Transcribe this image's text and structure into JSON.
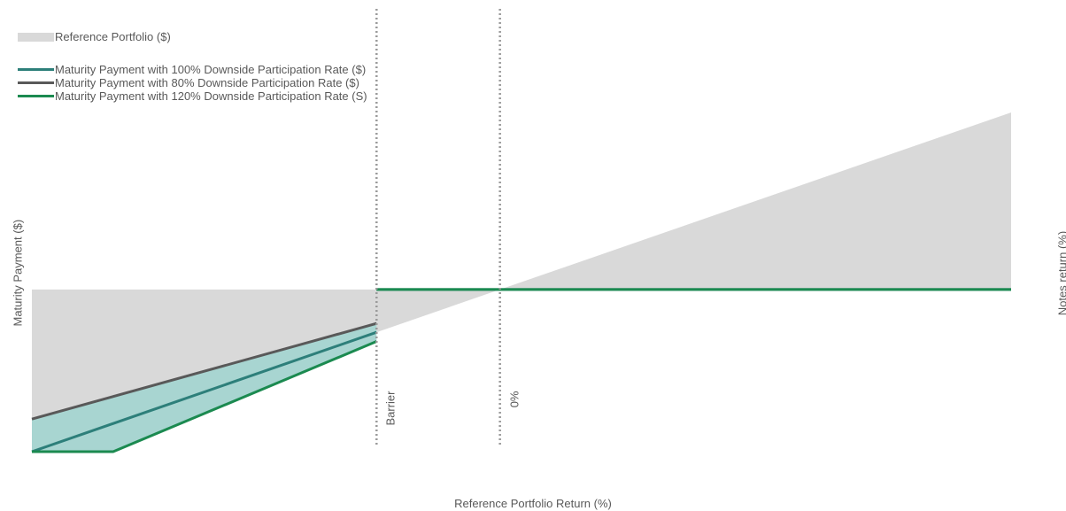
{
  "chart_data": {
    "type": "area",
    "title": "",
    "xlabel": "Reference Portfolio Return (%)",
    "ylabel": "Maturity Payment ($)",
    "ylabel_right": "Notes return (%)",
    "xlim": [
      0,
      100
    ],
    "ylim": [
      0,
      100
    ],
    "grid": false,
    "legend_position": "top-left",
    "vertical_lines": [
      {
        "label": "Barrier",
        "x": 35.2
      },
      {
        "label": "0%",
        "x": 47.8
      }
    ],
    "reference_area": {
      "name": "Reference Portfolio ($)",
      "color": "#d9d9d9",
      "x": [
        0,
        100
      ],
      "y": [
        0,
        100
      ]
    },
    "band": {
      "color": "#a8d5d1"
    },
    "series": [
      {
        "name": "Maturity Payment with 100% Downside Participation Rate ($)",
        "color": "#2d7f7a",
        "x": [
          0,
          35.2,
          35.2,
          100
        ],
        "y": [
          0,
          35.2,
          47.8,
          47.8
        ]
      },
      {
        "name": "Maturity Payment with 80% Downside Participation Rate ($)",
        "color": "#595959",
        "x": [
          0,
          35.2
        ],
        "y": [
          9.6,
          37.8
        ]
      },
      {
        "name": "Maturity Payment  with 120% Downside Participation Rate (S)",
        "color": "#1b8a50",
        "x": [
          0,
          8.3,
          35.2,
          35.2,
          100
        ],
        "y": [
          0,
          0,
          32.5,
          47.8,
          47.8
        ]
      }
    ]
  }
}
